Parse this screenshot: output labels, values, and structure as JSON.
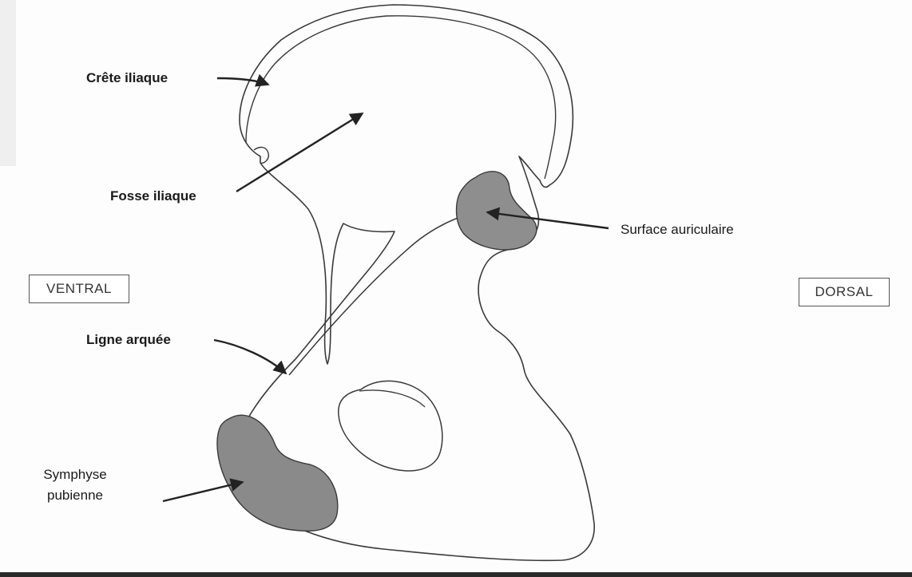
{
  "labels": {
    "crete_iliaque": "Crête iliaque",
    "fosse_iliaque": "Fosse iliaque",
    "surface_auriculaire": "Surface auriculaire",
    "ligne_arquee": "Ligne arquée",
    "symphyse_pubienne_line1": "Symphyse",
    "symphyse_pubienne_line2": "pubienne"
  },
  "orientation": {
    "ventral": "VENTRAL",
    "dorsal": "DORSAL"
  },
  "colors": {
    "outline": "#3a3a3a",
    "shaded_surface": "#8e8e8e",
    "arrow": "#222222"
  }
}
